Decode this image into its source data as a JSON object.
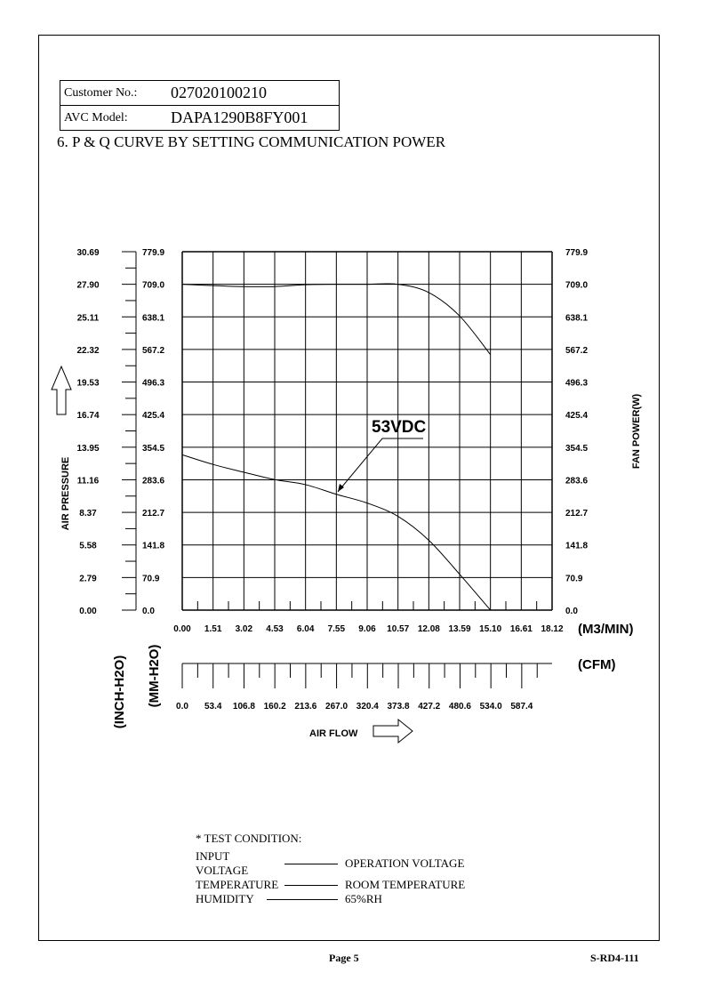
{
  "header": {
    "customer_label": "Customer No.:",
    "customer_value": "027020100210",
    "model_label": "AVC Model:",
    "model_value": "DAPA1290B8FY001"
  },
  "title": "6. P & Q CURVE BY SETTING COMMUNICATION POWER",
  "chart_data": {
    "type": "line",
    "y_label": "AIR PRESSURE",
    "y_units_inch": "(INCH-H2O)",
    "y_units_mm": "(MM-H2O)",
    "y2_label": "FAN POWER(W)",
    "x_units": "(M3/MIN)",
    "x2_units": "(CFM)",
    "x_label": "AIR FLOW",
    "inch_ticks": [
      "30.69",
      "27.90",
      "25.11",
      "22.32",
      "19.53",
      "16.74",
      "13.95",
      "11.16",
      "8.37",
      "5.58",
      "2.79",
      "0.00"
    ],
    "mm_ticks": [
      "779.9",
      "709.0",
      "638.1",
      "567.2",
      "496.3",
      "425.4",
      "354.5",
      "283.6",
      "212.7",
      "141.8",
      "70.9",
      "0.0"
    ],
    "power_ticks": [
      "779.9",
      "709.0",
      "638.1",
      "567.2",
      "496.3",
      "425.4",
      "354.5",
      "283.6",
      "212.7",
      "141.8",
      "70.9",
      "0.0"
    ],
    "x_ticks": [
      "0.00",
      "1.51",
      "3.02",
      "4.53",
      "6.04",
      "7.55",
      "9.06",
      "10.57",
      "12.08",
      "13.59",
      "15.10",
      "16.61",
      "18.12"
    ],
    "cfm_ticks": [
      "0.0",
      "53.4",
      "106.8",
      "160.2",
      "213.6",
      "267.0",
      "320.4",
      "373.8",
      "427.2",
      "480.6",
      "534.0",
      "587.4"
    ],
    "xlim": [
      0,
      18.12
    ],
    "ylim": [
      0,
      779.9
    ],
    "grid": true,
    "annotation": "53VDC",
    "series": [
      {
        "axis": "left",
        "x": [
          0,
          1.51,
          3.02,
          4.53,
          6.04,
          7.55,
          9.06,
          10.57,
          12.08,
          13.59,
          15.1
        ],
        "y": [
          338,
          317,
          300,
          284,
          273,
          252,
          233,
          204,
          152,
          78,
          0
        ]
      },
      {
        "axis": "right",
        "x": [
          0,
          1.51,
          3.02,
          4.53,
          6.04,
          7.55,
          9.06,
          10.57,
          12.08,
          13.59,
          15.1
        ],
        "y": [
          709,
          706,
          704,
          704,
          708,
          709,
          709,
          709,
          691,
          640,
          556
        ]
      }
    ]
  },
  "test": {
    "heading": "* TEST CONDITION:",
    "rows": [
      {
        "k": "INPUT VOLTAGE",
        "v": "OPERATION VOLTAGE"
      },
      {
        "k": "TEMPERATURE",
        "v": "ROOM TEMPERATURE"
      },
      {
        "k": "HUMIDITY",
        "v": "65%RH"
      }
    ]
  },
  "footer": {
    "page": "Page 5",
    "doc": "S-RD4-111"
  }
}
